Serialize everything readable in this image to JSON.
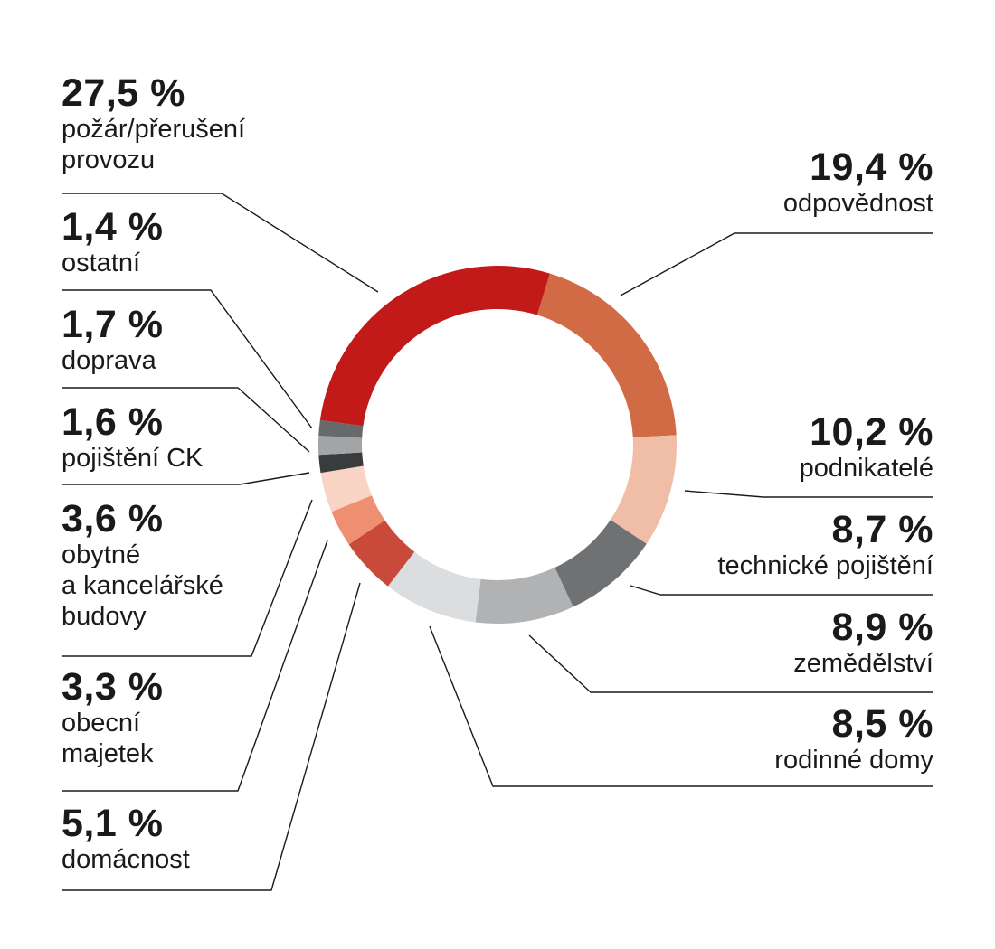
{
  "chart_data": {
    "type": "pie",
    "style": "donut",
    "labels_placement": "outside with leader lines",
    "slices": [
      {
        "key": "odpovednost",
        "name": "odpovědnost",
        "value": 19.4,
        "value_label": "19,4 %",
        "color": "#d06b45"
      },
      {
        "key": "podnikatele",
        "name": "podnikatelé",
        "value": 10.2,
        "value_label": "10,2 %",
        "color": "#f0bea7"
      },
      {
        "key": "technicke",
        "name": "technické pojištění",
        "value": 8.7,
        "value_label": "8,7 %",
        "color": "#707173"
      },
      {
        "key": "zemedelstvi",
        "name": "zemědělství",
        "value": 8.9,
        "value_label": "8,9 %",
        "color": "#b1b2b4"
      },
      {
        "key": "rodinne",
        "name": "rodinné domy",
        "value": 8.5,
        "value_label": "8,5 %",
        "color": "#dcdddf"
      },
      {
        "key": "domacnost",
        "name": "domácnost",
        "value": 5.1,
        "value_label": "5,1 %",
        "color": "#c9493a"
      },
      {
        "key": "obecni",
        "name": "obecní\nmajetek",
        "value": 3.3,
        "value_label": "3,3 %",
        "color": "#ef8f71"
      },
      {
        "key": "obytne",
        "name": "obytné\na kancelářské\nbudovy",
        "value": 3.6,
        "value_label": "3,6 %",
        "color": "#f9d3c4"
      },
      {
        "key": "pojisteni_ck",
        "name": "pojištění CK",
        "value": 1.6,
        "value_label": "1,6 %",
        "color": "#3a3b3d"
      },
      {
        "key": "doprava",
        "name": "doprava",
        "value": 1.7,
        "value_label": "1,7 %",
        "color": "#a3a4a6"
      },
      {
        "key": "ostatni",
        "name": "ostatní",
        "value": 1.4,
        "value_label": "1,4 %",
        "color": "#68696b"
      },
      {
        "key": "pozar",
        "name": "požár/přerušení\nprovozu",
        "value": 27.5,
        "value_label": "27,5 %",
        "color": "#c21a19"
      }
    ]
  }
}
